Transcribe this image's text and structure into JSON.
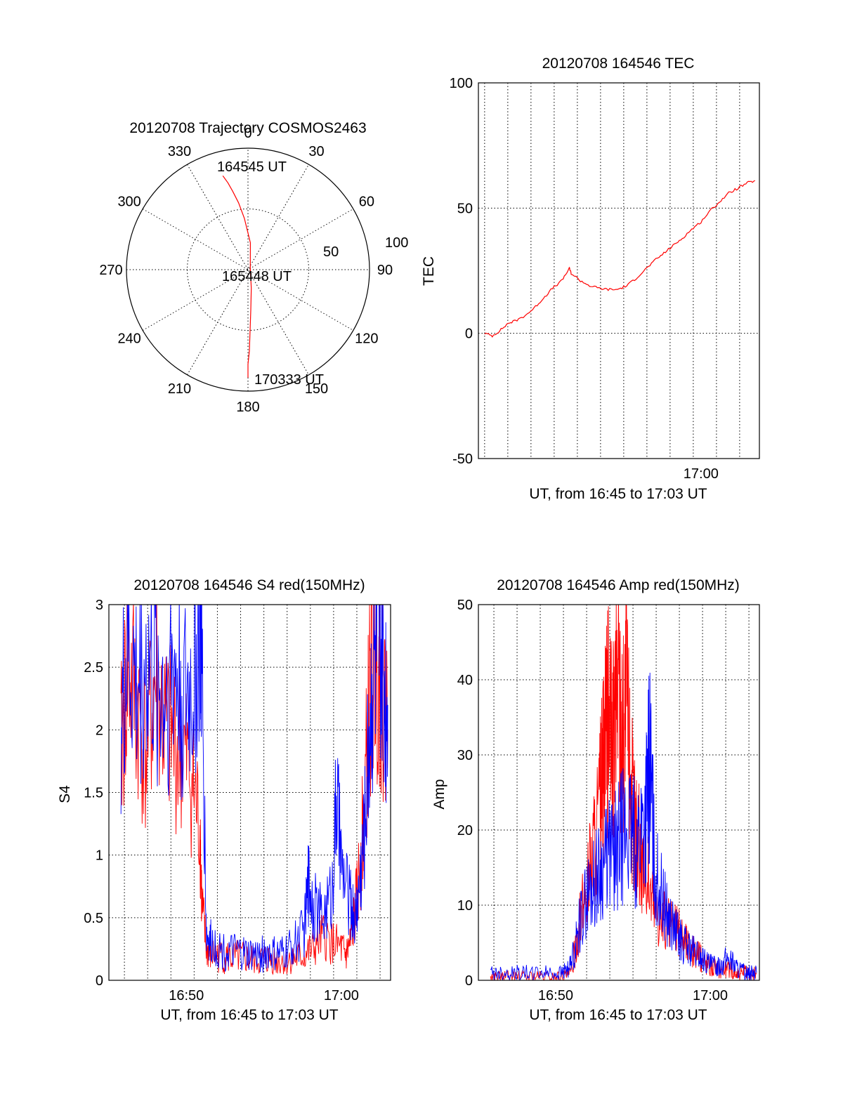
{
  "chart_data": [
    {
      "type": "polar",
      "title": "20120708 Trajectory COSMOS2463",
      "azimuth_labels": [
        "0",
        "30",
        "60",
        "90",
        "120",
        "150",
        "180",
        "210",
        "240",
        "270",
        "300",
        "330"
      ],
      "ring_labels": [
        "50",
        "100"
      ],
      "series": [
        {
          "color": "#ff0000",
          "points": [
            {
              "az": 345,
              "el": 18
            },
            {
              "az": 347,
              "el": 24
            },
            {
              "az": 349,
              "el": 31
            },
            {
              "az": 352,
              "el": 40
            },
            {
              "az": 356,
              "el": 52
            },
            {
              "az": 5,
              "el": 70
            },
            {
              "az": 60,
              "el": 88
            },
            {
              "az": 170,
              "el": 76
            },
            {
              "az": 176,
              "el": 60
            },
            {
              "az": 178,
              "el": 45
            },
            {
              "az": 179,
              "el": 30
            },
            {
              "az": 180,
              "el": 20
            },
            {
              "az": 180,
              "el": 10
            }
          ]
        }
      ],
      "annotations": [
        "164545 UT",
        "165448 UT",
        "170333 UT"
      ]
    },
    {
      "type": "line",
      "title": "20120708 164546 TEC",
      "xlabel": "UT, from 16:45 to 17:03 UT",
      "ylabel": "TEC",
      "xlim": [
        16.76,
        17.063
      ],
      "ylim": [
        -50,
        100
      ],
      "x_ticks": [
        17.0
      ],
      "x_tick_labels": [
        "17:00"
      ],
      "y_ticks": [
        -50,
        0,
        50,
        100
      ],
      "y_tick_labels": [
        "-50",
        "0",
        "50",
        "100"
      ],
      "series": [
        {
          "color": "#ff0000",
          "x": [
            16.7667,
            16.775,
            16.783,
            16.792,
            16.8,
            16.81,
            16.82,
            16.83,
            16.84,
            16.85,
            16.858,
            16.86,
            16.87,
            16.88,
            16.89,
            16.9,
            16.91,
            16.92,
            16.93,
            16.94,
            16.95,
            16.96,
            16.97,
            16.98,
            16.99,
            17.0,
            17.01,
            17.02,
            17.03,
            17.04,
            17.05,
            17.0583
          ],
          "y": [
            0,
            -1,
            1,
            4,
            5,
            7,
            10,
            14,
            18,
            21,
            26,
            24,
            21,
            19,
            18,
            17.5,
            17.5,
            19,
            22,
            25.5,
            29,
            32,
            35,
            38,
            41.5,
            44.5,
            49,
            52.5,
            56,
            58,
            60,
            61
          ]
        }
      ]
    },
    {
      "type": "line",
      "title": "20120708 164546 S4 red(150MHz)",
      "xlabel": "UT, from 16:45 to 17:03 UT",
      "ylabel": "S4",
      "xlim": [
        16.75,
        17.053
      ],
      "ylim": [
        0,
        3
      ],
      "x_ticks": [
        16.8333,
        17.0
      ],
      "x_tick_labels": [
        "16:50",
        "17:00"
      ],
      "y_ticks": [
        0,
        0.5,
        1,
        1.5,
        2,
        2.5,
        3
      ],
      "y_tick_labels": [
        "0",
        "0.5",
        "1",
        "1.5",
        "2",
        "2.5",
        "3"
      ],
      "series": [
        {
          "color": "#ff0000",
          "x": [
            16.763,
            16.77,
            16.78,
            16.79,
            16.8,
            16.81,
            16.82,
            16.83,
            16.84,
            16.848,
            16.85,
            16.855,
            16.86,
            16.87,
            16.88,
            16.89,
            16.9,
            16.91,
            16.92,
            16.93,
            16.94,
            16.95,
            16.96,
            16.97,
            16.98,
            16.99,
            17.0,
            17.005,
            17.01,
            17.015,
            17.02,
            17.025,
            17.03,
            17.035,
            17.04,
            17.045,
            17.05
          ],
          "y": [
            1.8,
            2.5,
            2.2,
            1.8,
            2.4,
            2.0,
            1.9,
            1.8,
            1.6,
            1.2,
            0.6,
            0.25,
            0.2,
            0.2,
            0.18,
            0.18,
            0.17,
            0.16,
            0.17,
            0.16,
            0.15,
            0.17,
            0.2,
            0.25,
            0.35,
            0.3,
            0.25,
            0.2,
            0.3,
            0.55,
            0.9,
            1.4,
            2.2,
            2.6,
            2.5,
            2.3,
            2.0
          ]
        },
        {
          "color": "#0000ff",
          "x": [
            16.763,
            16.77,
            16.78,
            16.79,
            16.8,
            16.81,
            16.82,
            16.83,
            16.84,
            16.848,
            16.85,
            16.855,
            16.86,
            16.87,
            16.88,
            16.89,
            16.9,
            16.91,
            16.92,
            16.93,
            16.94,
            16.95,
            16.96,
            16.965,
            16.97,
            16.98,
            16.99,
            16.995,
            17.0,
            17.01,
            17.015,
            17.02,
            17.025,
            17.03,
            17.035,
            17.04,
            17.045,
            17.05
          ],
          "y": [
            2.0,
            2.6,
            2.3,
            2.5,
            2.4,
            2.3,
            2.5,
            2.2,
            2.3,
            2.8,
            2.5,
            0.35,
            0.3,
            0.25,
            0.22,
            0.22,
            0.2,
            0.2,
            0.22,
            0.2,
            0.22,
            0.3,
            0.4,
            0.8,
            0.6,
            0.5,
            0.7,
            1.5,
            0.9,
            0.6,
            0.5,
            0.8,
            1.2,
            2.0,
            2.5,
            2.7,
            2.4,
            2.2
          ]
        }
      ]
    },
    {
      "type": "line",
      "title": "20120708 164546 Amp red(150MHz)",
      "xlabel": "UT, from 16:45 to 17:03 UT",
      "ylabel": "Amp",
      "xlim": [
        16.75,
        17.053
      ],
      "ylim": [
        0,
        50
      ],
      "x_ticks": [
        16.8333,
        17.0
      ],
      "x_tick_labels": [
        "16:50",
        "17:00"
      ],
      "y_ticks": [
        0,
        10,
        20,
        30,
        40,
        50
      ],
      "y_tick_labels": [
        "0",
        "10",
        "20",
        "30",
        "40",
        "50"
      ],
      "series": [
        {
          "color": "#ff0000",
          "x": [
            16.763,
            16.78,
            16.8,
            16.82,
            16.84,
            16.85,
            16.86,
            16.87,
            16.88,
            16.885,
            16.89,
            16.895,
            16.9,
            16.905,
            16.91,
            16.915,
            16.92,
            16.93,
            16.94,
            16.95,
            16.96,
            16.97,
            16.98,
            16.99,
            17.0,
            17.01,
            17.02,
            17.03,
            17.04,
            17.05
          ],
          "y": [
            0.5,
            0.5,
            0.5,
            0.5,
            0.5,
            1,
            8,
            15,
            22,
            28,
            35,
            30,
            42,
            33,
            38,
            25,
            20,
            15,
            10,
            8,
            7,
            6,
            4,
            3,
            2,
            1.5,
            1.5,
            1,
            1,
            0.8
          ]
        },
        {
          "color": "#0000ff",
          "x": [
            16.763,
            16.78,
            16.8,
            16.82,
            16.84,
            16.85,
            16.86,
            16.87,
            16.88,
            16.89,
            16.9,
            16.91,
            16.92,
            16.93,
            16.935,
            16.94,
            16.95,
            16.96,
            16.97,
            16.98,
            16.99,
            17.0,
            17.01,
            17.02,
            17.03,
            17.04,
            17.05
          ],
          "y": [
            1,
            1,
            1,
            1,
            1,
            2,
            8,
            12,
            14,
            16,
            18,
            20,
            18,
            22,
            30,
            15,
            10,
            7,
            5,
            4,
            3,
            2,
            2,
            3,
            1.5,
            1,
            1
          ]
        }
      ]
    }
  ]
}
